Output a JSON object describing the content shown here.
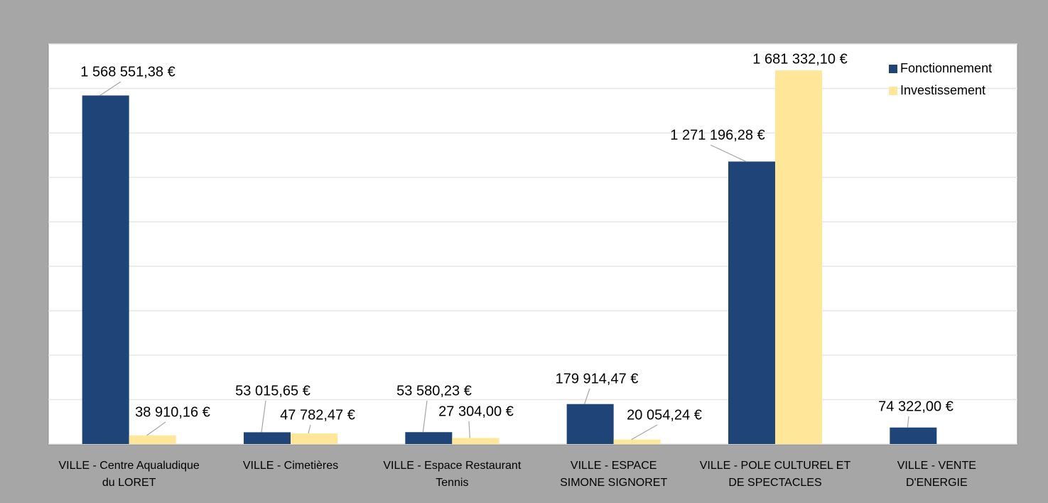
{
  "chart_data": {
    "type": "bar",
    "categories": [
      "VILLE - Centre Aqualudique du LORET",
      "VILLE - Cimetières",
      "VILLE - Espace Restaurant Tennis",
      "VILLE - ESPACE SIMONE SIGNORET",
      "VILLE - POLE CULTUREL ET DE SPECTACLES",
      "VILLE - VENTE D'ENERGIE"
    ],
    "series": [
      {
        "name": "Fonctionnement",
        "color": "#1f4478",
        "values": [
          1568551.38,
          53015.65,
          53580.23,
          179914.47,
          1271196.28,
          74322.0
        ],
        "value_labels": [
          "1 568 551,38 €",
          "53 015,65 €",
          "53 580,23 €",
          "179 914,47 €",
          "1 271 196,28 €",
          "74 322,00 €"
        ]
      },
      {
        "name": "Investissement",
        "color": "#ffe699",
        "values": [
          38910.16,
          47782.47,
          27304.0,
          20054.24,
          1681332.1,
          null
        ],
        "value_labels": [
          "38 910,16 €",
          "47 782,47 €",
          "27 304,00 €",
          "20 054,24 €",
          "1 681 332,10 €",
          null
        ]
      }
    ],
    "ylim": [
      0,
      1800000
    ],
    "yticks": [
      0,
      200000,
      400000,
      600000,
      800000,
      1000000,
      1200000,
      1400000,
      1600000,
      1800000
    ],
    "grid": true,
    "legend": "top-right"
  }
}
